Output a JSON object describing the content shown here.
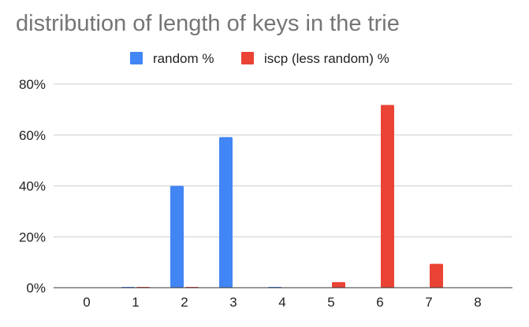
{
  "chart_data": {
    "type": "bar",
    "title": "distribution of length of keys in the trie",
    "xlabel": "",
    "ylabel": "",
    "categories": [
      "0",
      "1",
      "2",
      "3",
      "4",
      "5",
      "6",
      "7",
      "8"
    ],
    "series": [
      {
        "name": "random %",
        "color": "#4285f4",
        "values": [
          0,
          0.3,
          40,
          59.2,
          0.3,
          0,
          0,
          0,
          0
        ]
      },
      {
        "name": "iscp (less random) %",
        "color": "#ea4335",
        "values": [
          0,
          0.3,
          0.3,
          0,
          0,
          2.2,
          71.8,
          9.4,
          0
        ]
      }
    ],
    "ylim": [
      0,
      80
    ],
    "yticks": [
      "0%",
      "20%",
      "40%",
      "60%",
      "80%"
    ],
    "ytick_values": [
      0,
      20,
      40,
      60,
      80
    ],
    "legend_position": "top-center",
    "grid": true
  }
}
